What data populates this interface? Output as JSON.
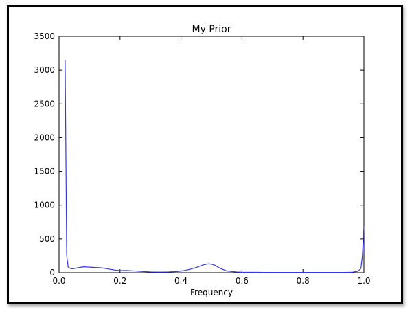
{
  "chart_data": {
    "type": "line",
    "title": "My Prior",
    "xlabel": "Frequency",
    "ylabel": "",
    "xlim": [
      0.0,
      1.0
    ],
    "ylim": [
      0,
      3500
    ],
    "grid": false,
    "legend": "none",
    "x_ticks": [
      "0.0",
      "0.2",
      "0.4",
      "0.6",
      "0.8",
      "1.0"
    ],
    "y_ticks": [
      "0",
      "500",
      "1000",
      "1500",
      "2000",
      "2500",
      "3000",
      "3500"
    ],
    "series": [
      {
        "color": "#3333ff",
        "x": [
          0.02,
          0.025,
          0.03,
          0.04,
          0.05,
          0.06,
          0.08,
          0.1,
          0.12,
          0.14,
          0.16,
          0.18,
          0.2,
          0.22,
          0.25,
          0.28,
          0.3,
          0.33,
          0.36,
          0.39,
          0.41,
          0.43,
          0.45,
          0.47,
          0.49,
          0.5,
          0.51,
          0.53,
          0.55,
          0.58,
          0.6,
          0.65,
          0.7,
          0.75,
          0.8,
          0.85,
          0.9,
          0.93,
          0.96,
          0.98,
          0.99,
          0.995,
          1.0
        ],
        "y": [
          3150,
          260,
          80,
          55,
          60,
          70,
          85,
          80,
          75,
          70,
          55,
          40,
          30,
          32,
          25,
          15,
          10,
          8,
          10,
          18,
          30,
          50,
          75,
          110,
          130,
          125,
          110,
          60,
          25,
          10,
          6,
          5,
          4,
          4,
          4,
          4,
          4,
          4,
          6,
          20,
          60,
          250,
          690
        ]
      }
    ]
  }
}
